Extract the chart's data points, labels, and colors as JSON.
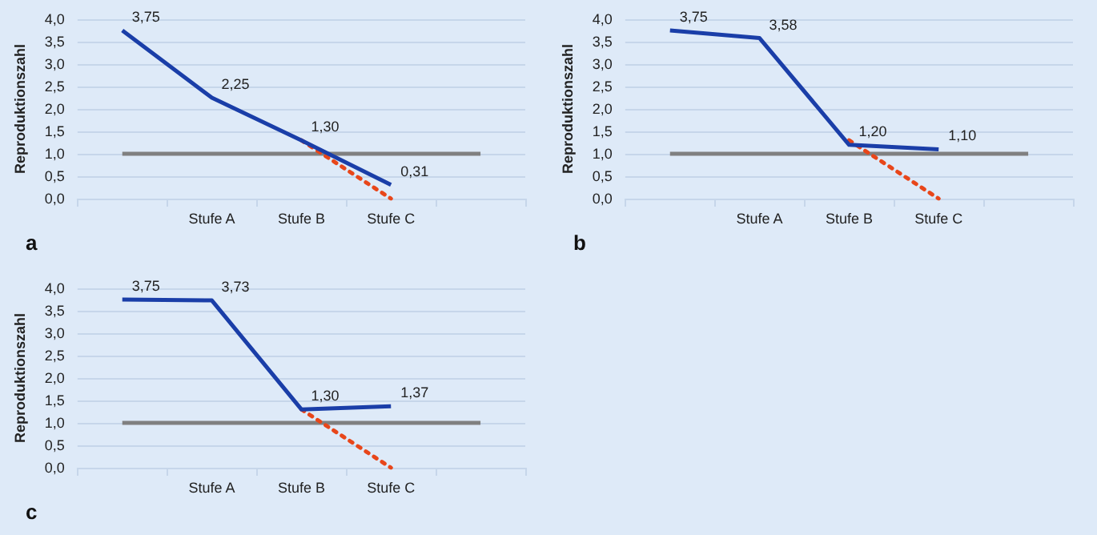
{
  "chart_data": [
    {
      "type": "line",
      "ylabel": "Reproduktionszahl",
      "annotations": [
        "a"
      ],
      "categories": [
        null,
        "Stufe A",
        "Stufe B",
        "Stufe C",
        null
      ],
      "ylim": [
        0,
        4
      ],
      "yticks": [
        {
          "value": 0,
          "label": "0,0"
        },
        {
          "value": 0.5,
          "label": "0,5"
        },
        {
          "value": 1,
          "label": "1,0"
        },
        {
          "value": 1.5,
          "label": "1,5"
        },
        {
          "value": 2,
          "label": "2,0"
        },
        {
          "value": 2.5,
          "label": "2,5"
        },
        {
          "value": 3,
          "label": "3,0"
        },
        {
          "value": 3.5,
          "label": "3,5"
        },
        {
          "value": 4,
          "label": "4,0"
        }
      ],
      "grid": "y",
      "marker": "none",
      "series": [
        {
          "color": "#808080",
          "values": [
            1,
            1,
            1,
            1,
            1
          ]
        },
        {
          "color": "#e8461a",
          "line_style": "dotted",
          "values": [
            null,
            null,
            1.3,
            0,
            null
          ]
        },
        {
          "color": "#1a3ea8",
          "values": [
            3.75,
            2.25,
            1.3,
            0.31,
            null
          ],
          "value_labels": [
            "3,75",
            "2,25",
            "1,30",
            "0,31",
            null
          ]
        }
      ]
    },
    {
      "type": "line",
      "ylabel": "Reproduktionszahl",
      "annotations": [
        "b"
      ],
      "categories": [
        null,
        "Stufe A",
        "Stufe B",
        "Stufe C",
        null
      ],
      "ylim": [
        0,
        4
      ],
      "yticks": [
        {
          "value": 0,
          "label": "0,0"
        },
        {
          "value": 0.5,
          "label": "0,5"
        },
        {
          "value": 1,
          "label": "1,0"
        },
        {
          "value": 1.5,
          "label": "1,5"
        },
        {
          "value": 2,
          "label": "2,0"
        },
        {
          "value": 2.5,
          "label": "2,5"
        },
        {
          "value": 3,
          "label": "3,0"
        },
        {
          "value": 3.5,
          "label": "3,5"
        },
        {
          "value": 4,
          "label": "4,0"
        }
      ],
      "grid": "y",
      "marker": "none",
      "series": [
        {
          "color": "#808080",
          "values": [
            1,
            1,
            1,
            1,
            1
          ]
        },
        {
          "color": "#e8461a",
          "line_style": "dotted",
          "values": [
            null,
            null,
            1.3,
            0,
            null
          ]
        },
        {
          "color": "#1a3ea8",
          "values": [
            3.75,
            3.58,
            1.2,
            1.1,
            null
          ],
          "value_labels": [
            "3,75",
            "3,58",
            "1,20",
            "1,10",
            null
          ]
        }
      ]
    },
    {
      "type": "line",
      "ylabel": "Reproduktionszahl",
      "annotations": [
        "c"
      ],
      "categories": [
        null,
        "Stufe A",
        "Stufe B",
        "Stufe C",
        null
      ],
      "ylim": [
        0,
        4
      ],
      "yticks": [
        {
          "value": 0,
          "label": "0,0"
        },
        {
          "value": 0.5,
          "label": "0,5"
        },
        {
          "value": 1,
          "label": "1,0"
        },
        {
          "value": 1.5,
          "label": "1,5"
        },
        {
          "value": 2,
          "label": "2,0"
        },
        {
          "value": 2.5,
          "label": "2,5"
        },
        {
          "value": 3,
          "label": "3,0"
        },
        {
          "value": 3.5,
          "label": "3,5"
        },
        {
          "value": 4,
          "label": "4,0"
        }
      ],
      "grid": "y",
      "marker": "none",
      "series": [
        {
          "color": "#808080",
          "values": [
            1,
            1,
            1,
            1,
            1
          ]
        },
        {
          "color": "#e8461a",
          "line_style": "dotted",
          "values": [
            null,
            null,
            1.3,
            0,
            null
          ]
        },
        {
          "color": "#1a3ea8",
          "values": [
            3.75,
            3.73,
            1.3,
            1.37,
            null
          ],
          "value_labels": [
            "3,75",
            "3,73",
            "1,30",
            "1,37",
            null
          ]
        }
      ]
    }
  ]
}
